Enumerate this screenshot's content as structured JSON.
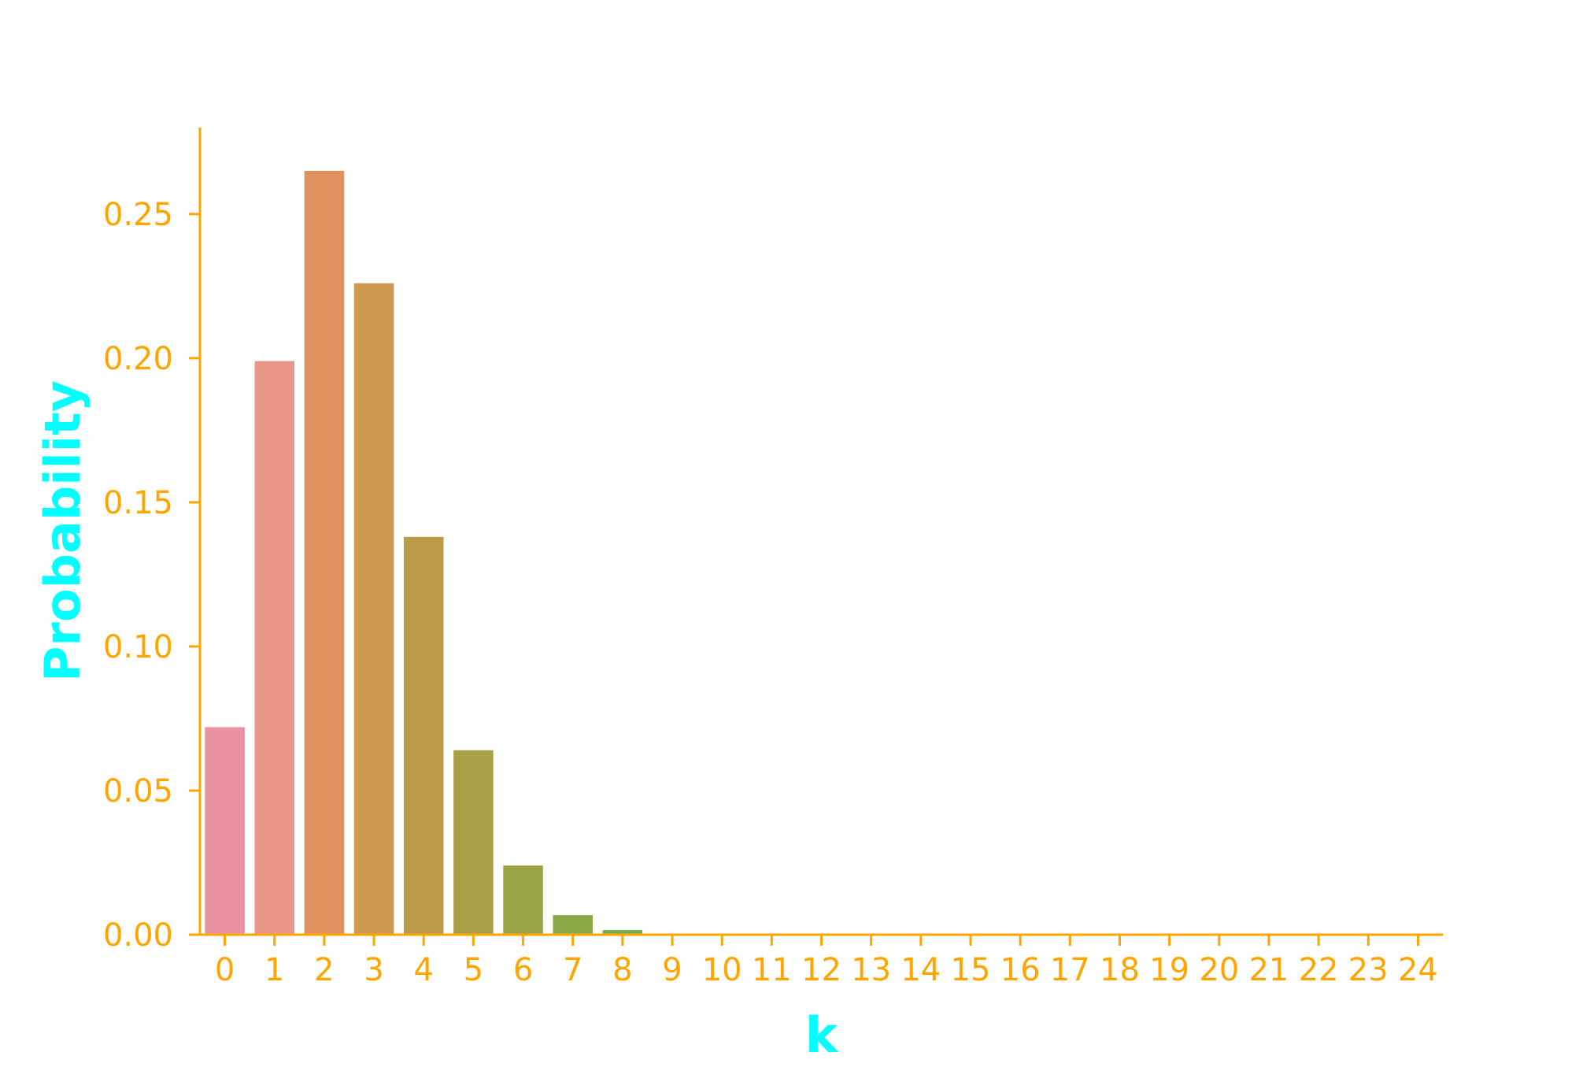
{
  "chart_data": {
    "type": "bar",
    "title": "",
    "xlabel": "k",
    "ylabel": "Probability",
    "categories": [
      "0",
      "1",
      "2",
      "3",
      "4",
      "5",
      "6",
      "7",
      "8",
      "9",
      "10",
      "11",
      "12",
      "13",
      "14",
      "15",
      "16",
      "17",
      "18",
      "19",
      "20",
      "21",
      "22",
      "23",
      "24"
    ],
    "values": [
      0.072,
      0.199,
      0.265,
      0.226,
      0.138,
      0.064,
      0.024,
      0.0068,
      0.0016,
      0.0003,
      5e-05,
      1e-05,
      0,
      0,
      0,
      0,
      0,
      0,
      0,
      0,
      0,
      0,
      0,
      0,
      0
    ],
    "ylim": [
      0,
      0.28
    ],
    "yticks": [
      0.0,
      0.05,
      0.1,
      0.15,
      0.2,
      0.25
    ],
    "ytick_labels": [
      "0.00",
      "0.05",
      "0.10",
      "0.15",
      "0.20",
      "0.25"
    ],
    "grid": false,
    "colors": {
      "axis": "#FFA500",
      "tick_text": "#FFA500",
      "axis_title": "#00FFFF",
      "background": "#FFFFFF",
      "bars": [
        "#E8939F",
        "#E89789",
        "#E0925E",
        "#CC9A4E",
        "#BB9A48",
        "#A99F46",
        "#9AA445",
        "#88A946",
        "#74AD4B",
        "#52AF52",
        "#4AB086",
        "#4AB09A",
        "#4BAFA7",
        "#4DAEB2",
        "#4FADBD",
        "#52ABC8",
        "#5AA8D3",
        "#6FA2DF",
        "#8C9BE5",
        "#A693E3",
        "#BC8BDE",
        "#CF84D5",
        "#DE80C6",
        "#E783B4",
        "#EA88A6"
      ]
    }
  }
}
